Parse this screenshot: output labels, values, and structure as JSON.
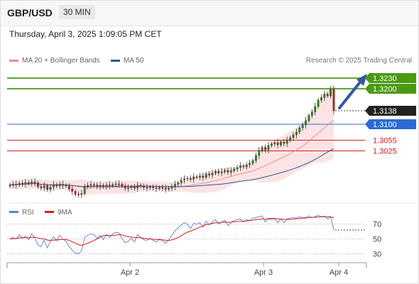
{
  "header": {
    "pair": "GBP/USD",
    "timeframe": "30 MIN"
  },
  "datetime": "Thursday, April 3, 2025 1:09:05 PM CET",
  "source": "Research © 2025 Trading Central",
  "legend": [
    {
      "label": "MA 20 + Bollinger Bands",
      "color": "#f28a8a"
    },
    {
      "label": "MA 50",
      "color": "#2d5591"
    }
  ],
  "rsi_legend": [
    {
      "label": "RSI",
      "color": "#5b7fd6"
    },
    {
      "label": "9MA",
      "color": "#d81b1b"
    }
  ],
  "chart_data": {
    "type": "candlestick",
    "price_ylim": [
      1.285,
      1.326
    ],
    "levels": [
      {
        "label": "1.3230",
        "value": 1.323,
        "color": "#4a9a12",
        "kind": "resistance"
      },
      {
        "label": "1.3200",
        "value": 1.32,
        "color": "#4a9a12",
        "kind": "resistance"
      },
      {
        "label": "1.3138",
        "value": 1.3138,
        "color": "#222222",
        "kind": "last"
      },
      {
        "label": "1.3100",
        "value": 1.31,
        "color": "#2a6ad6",
        "kind": "pivot"
      },
      {
        "label": "1.3055",
        "value": 1.3055,
        "color": "#d81b1b",
        "kind": "support"
      },
      {
        "label": "1.3025",
        "value": 1.3025,
        "color": "#d81b1b",
        "kind": "support"
      }
    ],
    "x_ticks": [
      "Apr 2",
      "Apr 3",
      "Apr 4"
    ],
    "closes": [
      1.2929,
      1.2931,
      1.2929,
      1.2934,
      1.2932,
      1.2936,
      1.2933,
      1.2938,
      1.2935,
      1.2924,
      1.2921,
      1.2927,
      1.2916,
      1.2923,
      1.293,
      1.2926,
      1.2931,
      1.2928,
      1.2926,
      1.2918,
      1.2911,
      1.2903,
      1.2902,
      1.2905,
      1.2925,
      1.2928,
      1.293,
      1.2929,
      1.2926,
      1.2928,
      1.2924,
      1.2929,
      1.2927,
      1.293,
      1.2932,
      1.2931,
      1.2926,
      1.292,
      1.2921,
      1.2924,
      1.292,
      1.2928,
      1.2925,
      1.2922,
      1.2921,
      1.2923,
      1.2921,
      1.2919,
      1.2922,
      1.292,
      1.2917,
      1.292,
      1.2925,
      1.2931,
      1.2935,
      1.2943,
      1.2946,
      1.2948,
      1.2945,
      1.2952,
      1.2951,
      1.2954,
      1.295,
      1.296,
      1.2957,
      1.2962,
      1.2967,
      1.2963,
      1.2966,
      1.297,
      1.2965,
      1.2969,
      1.2974,
      1.2978,
      1.2983,
      1.298,
      1.2986,
      1.299,
      1.2998,
      1.3012,
      1.3026,
      1.3035,
      1.3028,
      1.304,
      1.3045,
      1.3048,
      1.3042,
      1.305,
      1.3046,
      1.3055,
      1.3062,
      1.307,
      1.3078,
      1.309,
      1.3098,
      1.311,
      1.3125,
      1.3135,
      1.315,
      1.3168,
      1.3175,
      1.3185,
      1.318,
      1.3198,
      1.3138
    ],
    "rsi_ylim": [
      20,
      85
    ],
    "rsi_levels": [
      70,
      50,
      30
    ],
    "rsi": [
      50,
      52,
      50,
      56,
      51,
      54,
      49,
      57,
      51,
      42,
      40,
      48,
      38,
      47,
      53,
      48,
      55,
      50,
      47,
      40,
      35,
      31,
      30,
      34,
      52,
      55,
      57,
      56,
      51,
      55,
      49,
      56,
      52,
      57,
      59,
      58,
      51,
      45,
      47,
      51,
      46,
      56,
      52,
      49,
      48,
      51,
      48,
      46,
      50,
      48,
      44,
      49,
      55,
      61,
      65,
      69,
      72,
      70,
      64,
      71,
      70,
      72,
      66,
      74,
      69,
      73,
      76,
      70,
      73,
      75,
      68,
      72,
      75,
      76,
      77,
      73,
      76,
      75,
      78,
      79,
      80,
      81,
      73,
      78,
      78,
      78,
      72,
      77,
      72,
      77,
      78,
      79,
      78,
      80,
      79,
      79,
      81,
      79,
      80,
      82,
      80,
      81,
      77,
      80,
      62
    ],
    "rsi_ma": [
      50,
      50.5,
      50.7,
      51.6,
      51.6,
      52,
      51.6,
      52.3,
      52.4,
      51.4,
      50.3,
      50.1,
      48.6,
      48,
      48.6,
      48.6,
      49.2,
      49.4,
      49.3,
      48.1,
      46.5,
      44.5,
      42.5,
      41.4,
      42.8,
      44.3,
      46.2,
      48,
      50.2,
      52.3,
      54.4,
      55.2,
      54.8,
      54.8,
      55.2,
      55.8,
      55.7,
      54.1,
      53,
      52.6,
      52,
      51.9,
      51.6,
      51.1,
      50.4,
      49.8,
      49.7,
      49.3,
      49.1,
      48.8,
      48.3,
      48.1,
      48.8,
      50.1,
      51.9,
      54.3,
      57.1,
      59.3,
      60.5,
      62.5,
      64.2,
      66.2,
      67.5,
      69.3,
      69.9,
      71,
      71.8,
      71.8,
      72.3,
      72.7,
      72.4,
      72.7,
      73.1,
      73.4,
      73.9,
      74,
      74.3,
      74.8,
      75.3,
      76,
      76.6,
      77.1,
      76.6,
      76.8,
      77,
      77.3,
      77.1,
      76.9,
      76.5,
      76.3,
      76.3,
      76.8,
      77.3,
      77.7,
      78,
      78.3,
      78.8,
      79,
      79.3,
      79.7,
      79.8,
      80.1,
      79.8,
      80,
      78.3
    ]
  }
}
